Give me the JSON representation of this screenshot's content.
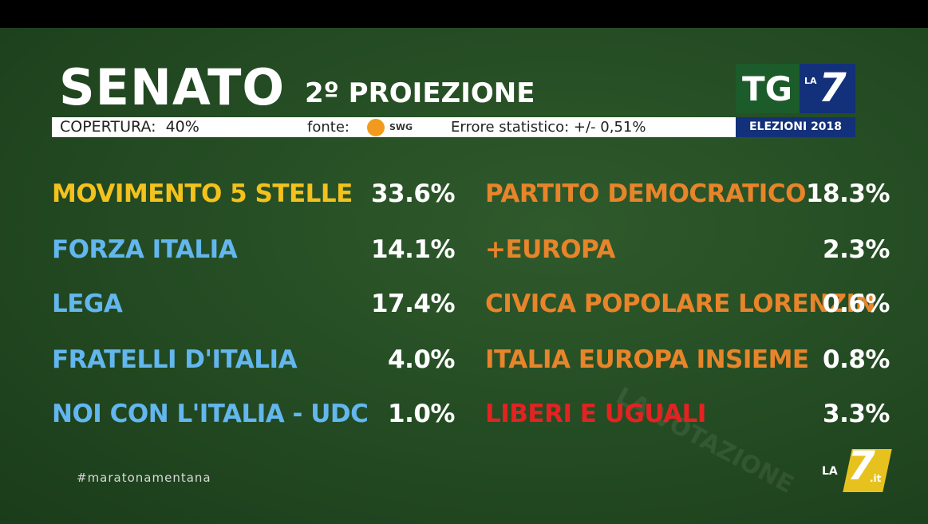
{
  "header": {
    "title": "SENATO",
    "subtitle": "2º PROIEZIONE",
    "coverage": "COPERTURA:  40%",
    "source_label": "fonte:",
    "source": "SWG",
    "error": "Errore statistico: +/- 0,51%"
  },
  "logo": {
    "tg": "TG",
    "la": "LA",
    "seven": "7",
    "caption": "ELEZIONI 2018"
  },
  "results": {
    "left": [
      {
        "name": "MOVIMENTO 5 STELLE",
        "value": "33.6%",
        "color": "#f4c21c"
      },
      {
        "name": "FORZA ITALIA",
        "value": "14.1%",
        "color": "#63b6ee"
      },
      {
        "name": "LEGA",
        "value": "17.4%",
        "color": "#63b6ee"
      },
      {
        "name": "FRATELLI D'ITALIA",
        "value": "4.0%",
        "color": "#63b6ee"
      },
      {
        "name": "NOI CON L'ITALIA - UDC",
        "value": "1.0%",
        "color": "#63b6ee"
      }
    ],
    "right": [
      {
        "name": "PARTITO DEMOCRATICO",
        "value": "18.3%",
        "color": "#e8842a"
      },
      {
        "name": "+EUROPA",
        "value": "2.3%",
        "color": "#e8842a"
      },
      {
        "name": "CIVICA POPOLARE LORENZIN",
        "value": "0.6%",
        "color": "#e8842a"
      },
      {
        "name": "ITALIA EUROPA INSIEME",
        "value": "0.8%",
        "color": "#e8842a"
      },
      {
        "name": "LIBERI E UGUALI",
        "value": "3.3%",
        "color": "#e42222"
      }
    ]
  },
  "footer": {
    "hashtag": "#maratonamentana",
    "background_text": "LA VOTAZIONE",
    "channel_la": "LA",
    "channel_seven": "7",
    "channel_it": ".it"
  }
}
